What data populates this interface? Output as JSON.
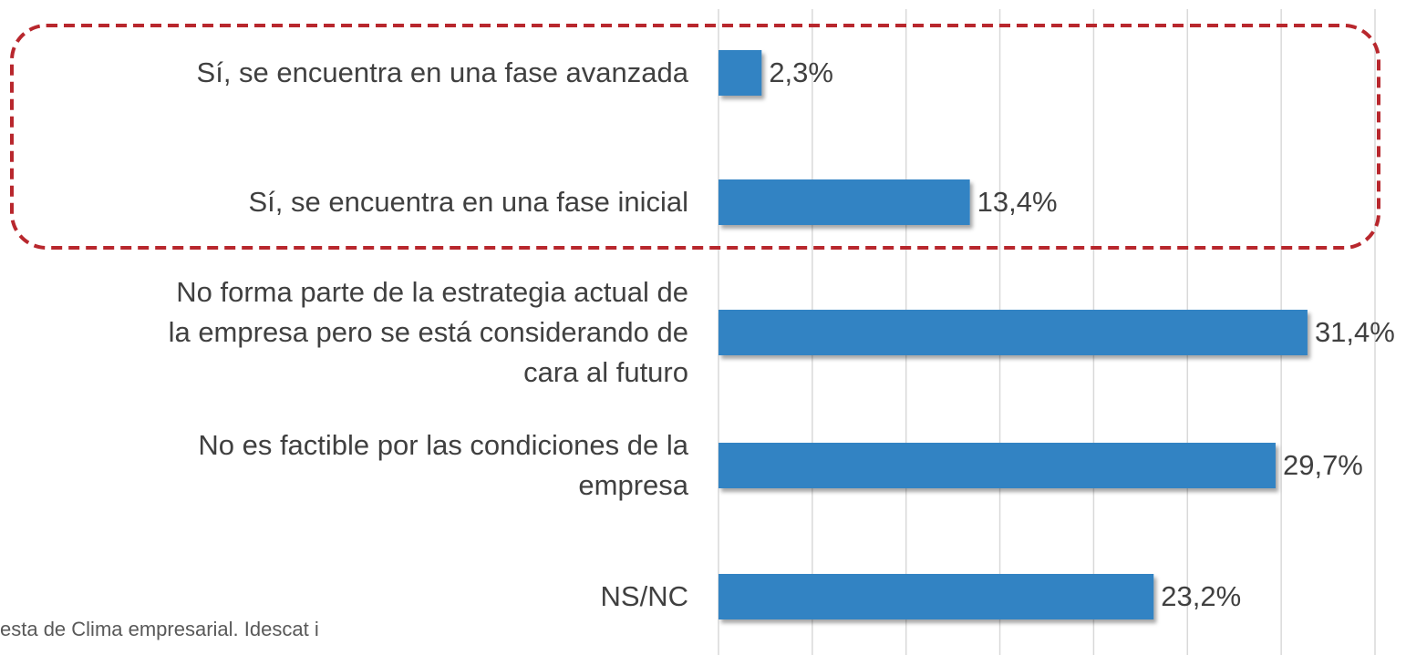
{
  "chart_data": {
    "type": "barh",
    "categories": [
      "Sí, se encuentra en una fase avanzada",
      "Sí, se encuentra en una fase inicial",
      "No forma parte de la estrategia actual de\nla empresa pero se está considerando de\ncara al futuro",
      "No es factible por las condiciones de la\nempresa",
      "NS/NC"
    ],
    "values": [
      2.3,
      13.4,
      31.4,
      29.7,
      23.2
    ],
    "value_labels": [
      "2,3%",
      "13,4%",
      "31,4%",
      "29,7%",
      "23,2%"
    ],
    "color": "#3283c3",
    "xlim": [
      0,
      35
    ],
    "xticks": [
      0,
      5,
      10,
      15,
      20,
      25,
      30,
      35
    ],
    "grid": true,
    "source": "esta de Clima empresarial. Idescat i"
  }
}
